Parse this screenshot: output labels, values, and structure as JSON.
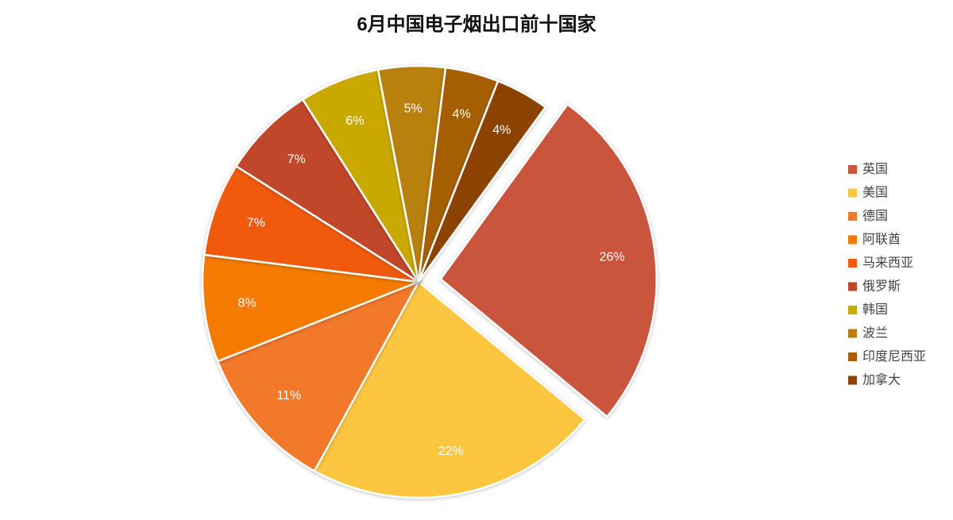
{
  "chart_data": {
    "type": "pie",
    "title": "6月中国电子烟出口前十国家",
    "categories": [
      "英国",
      "美国",
      "德国",
      "阿联酋",
      "马来西亚",
      "俄罗斯",
      "韩国",
      "波兰",
      "印度尼西亚",
      "加拿大"
    ],
    "values": [
      26,
      22,
      11,
      8,
      7,
      7,
      6,
      5,
      4,
      4
    ],
    "value_labels": [
      "26%",
      "22%",
      "11%",
      "8%",
      "7%",
      "7%",
      "6%",
      "5%",
      "4%",
      "4%"
    ],
    "colors": [
      "#c9553c",
      "#fdc63f",
      "#f2782a",
      "#f47a06",
      "#f15a0c",
      "#c0462a",
      "#c9a800",
      "#b8800a",
      "#a65e00",
      "#8c4200"
    ],
    "legend": "right"
  }
}
